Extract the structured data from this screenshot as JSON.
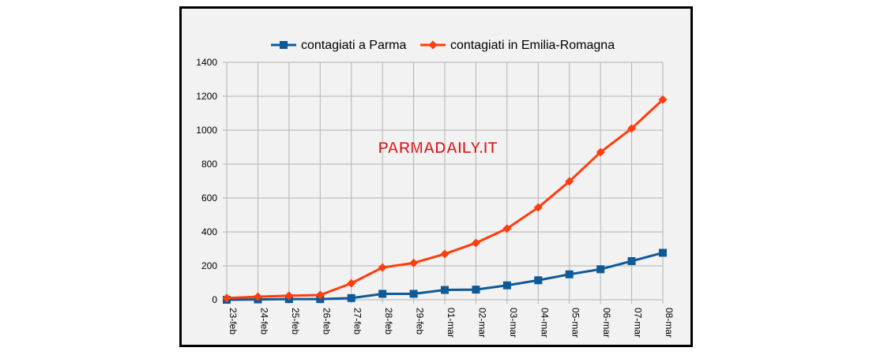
{
  "chart_data": {
    "type": "line",
    "categories": [
      "23-feb",
      "24-feb",
      "25-feb",
      "26-feb",
      "27-feb",
      "28-feb",
      "29-feb",
      "01-mar",
      "02-mar",
      "03-mar",
      "04-mar",
      "05-mar",
      "06-mar",
      "07-mar",
      "08-mar"
    ],
    "series": [
      {
        "name": "contagiati a Parma",
        "color": "#0e5a99",
        "marker": "square",
        "values": [
          0,
          2,
          4,
          4,
          10,
          35,
          35,
          58,
          60,
          85,
          115,
          150,
          180,
          228,
          277
        ]
      },
      {
        "name": "contagiati in Emilia-Romagna",
        "color": "#ff3d0d",
        "marker": "diamond",
        "values": [
          10,
          18,
          24,
          28,
          97,
          190,
          217,
          270,
          335,
          420,
          544,
          698,
          870,
          1010,
          1180
        ]
      }
    ],
    "ylim": [
      0,
      1400
    ],
    "yticks": [
      0,
      200,
      400,
      600,
      800,
      1000,
      1200,
      1400
    ],
    "grid": true,
    "legend_position": "top-center",
    "watermark": "PARMADAILY.IT"
  }
}
